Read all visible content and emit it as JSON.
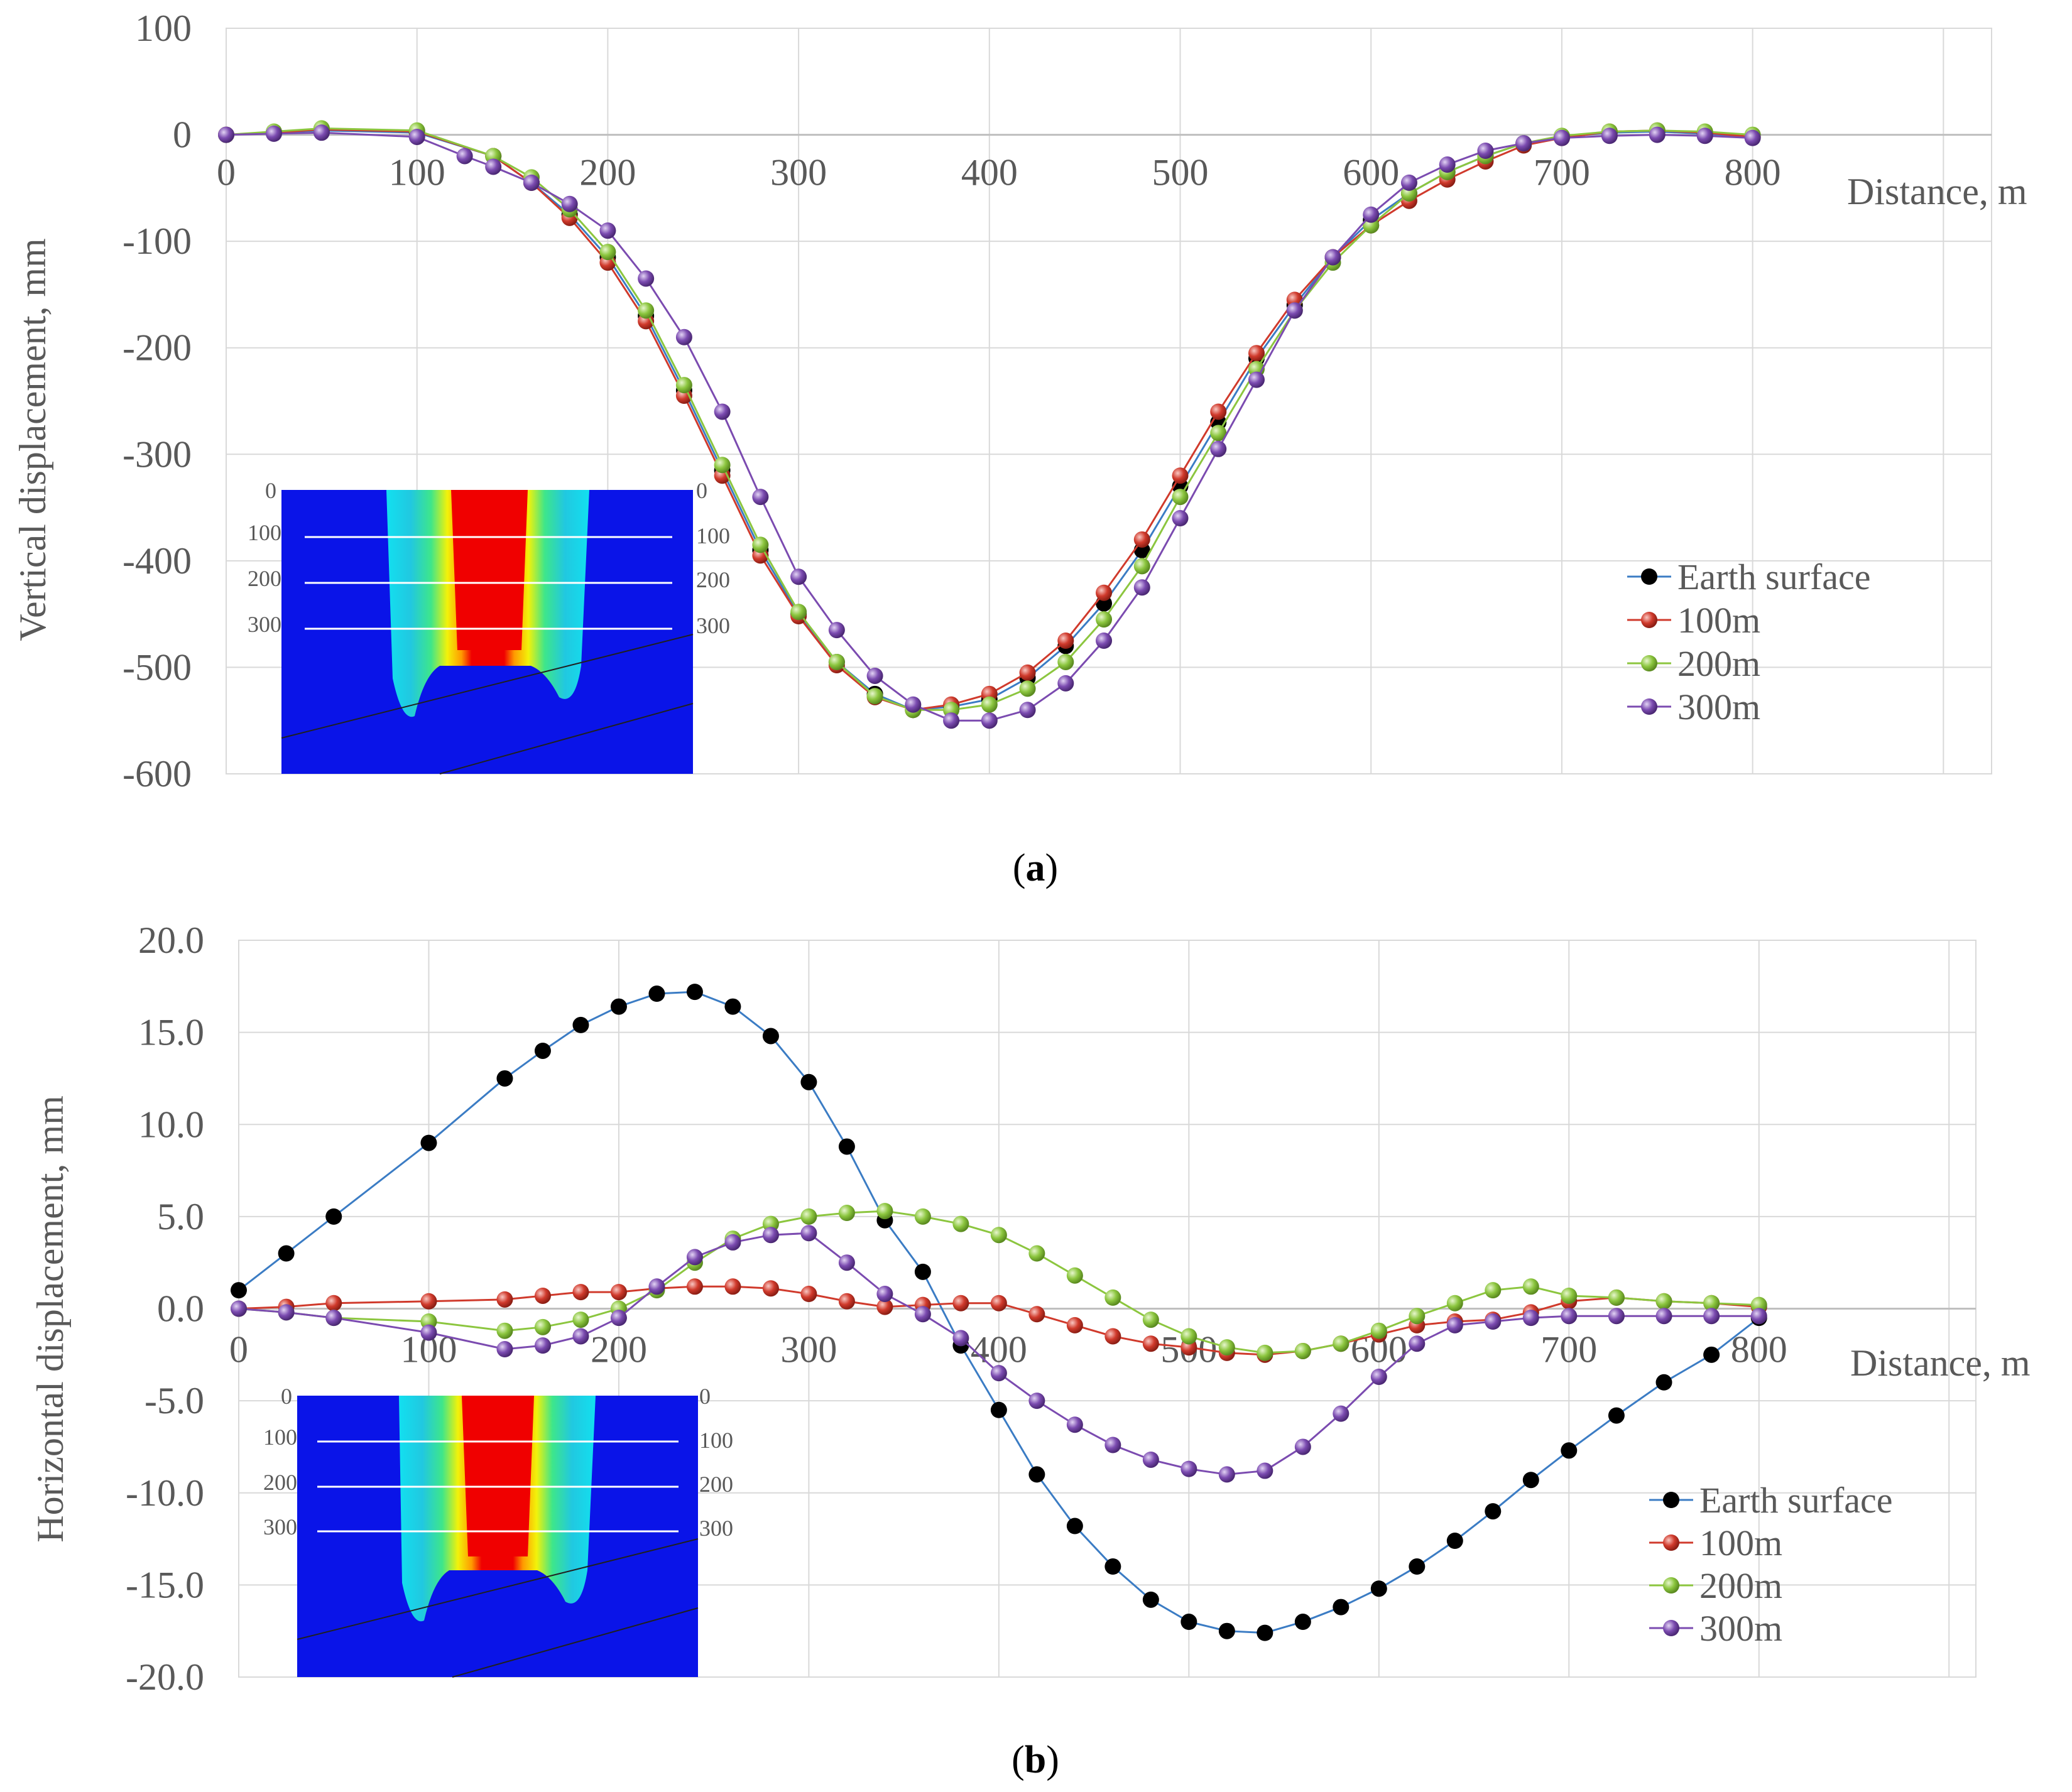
{
  "colors": {
    "Earth surface": "#3b7cc4",
    "100m": "#d03a2c",
    "200m": "#8cc63f",
    "300m": "#7b4bb0"
  },
  "chart_data": [
    {
      "panel": "a",
      "panel_label": "a",
      "type": "line",
      "ylabel": "Vertical displacement, mm",
      "xlabel": "Distance, m",
      "xlim": [
        0,
        900
      ],
      "ylim": [
        -600,
        100
      ],
      "x_ticks": [
        "0",
        "100",
        "200",
        "300",
        "400",
        "500",
        "600",
        "700",
        "800"
      ],
      "y_ticks": [
        "100",
        "0",
        "-100",
        "-200",
        "-300",
        "-400",
        "-500",
        "-600"
      ],
      "grid": true,
      "legend_position": "right",
      "legend": [
        "Earth surface",
        "100m",
        "200m",
        "300m"
      ],
      "inset_labels": [
        "0",
        "100",
        "200",
        "300"
      ],
      "series": [
        {
          "name": "Earth surface",
          "x": [
            0,
            25,
            50,
            100,
            140,
            160,
            180,
            200,
            220,
            240,
            260,
            280,
            300,
            320,
            340,
            360,
            380,
            400,
            420,
            440,
            460,
            480,
            500,
            520,
            540,
            560,
            580,
            600,
            620,
            640,
            660,
            680,
            700,
            725,
            750,
            775,
            800
          ],
          "values": [
            0,
            2,
            4,
            2,
            -20,
            -45,
            -75,
            -115,
            -170,
            -240,
            -315,
            -390,
            -450,
            -495,
            -525,
            -540,
            -537,
            -530,
            -510,
            -480,
            -440,
            -390,
            -330,
            -270,
            -210,
            -160,
            -115,
            -80,
            -55,
            -35,
            -20,
            -8,
            -2,
            2,
            3,
            1,
            -2
          ]
        },
        {
          "name": "100m",
          "x": [
            0,
            25,
            50,
            100,
            140,
            160,
            180,
            200,
            220,
            240,
            260,
            280,
            300,
            320,
            340,
            360,
            380,
            400,
            420,
            440,
            460,
            480,
            500,
            520,
            540,
            560,
            580,
            600,
            620,
            640,
            660,
            680,
            700,
            725,
            750,
            775,
            800
          ],
          "values": [
            0,
            2,
            5,
            3,
            -20,
            -45,
            -78,
            -120,
            -175,
            -245,
            -320,
            -395,
            -452,
            -498,
            -528,
            -540,
            -535,
            -525,
            -505,
            -475,
            -430,
            -380,
            -320,
            -260,
            -205,
            -155,
            -115,
            -85,
            -62,
            -42,
            -25,
            -10,
            -3,
            3,
            4,
            2,
            -2
          ]
        },
        {
          "name": "200m",
          "x": [
            0,
            25,
            50,
            100,
            140,
            160,
            180,
            200,
            220,
            240,
            260,
            280,
            300,
            320,
            340,
            360,
            380,
            400,
            420,
            440,
            460,
            480,
            500,
            520,
            540,
            560,
            580,
            600,
            620,
            640,
            660,
            680,
            700,
            725,
            750,
            775,
            800
          ],
          "values": [
            0,
            3,
            6,
            4,
            -20,
            -40,
            -70,
            -110,
            -165,
            -235,
            -310,
            -385,
            -448,
            -495,
            -527,
            -540,
            -540,
            -535,
            -520,
            -495,
            -455,
            -405,
            -340,
            -280,
            -220,
            -165,
            -120,
            -85,
            -55,
            -35,
            -20,
            -8,
            -1,
            3,
            4,
            3,
            0
          ]
        },
        {
          "name": "300m",
          "x": [
            0,
            25,
            50,
            100,
            125,
            140,
            160,
            180,
            200,
            220,
            240,
            260,
            280,
            300,
            320,
            340,
            360,
            380,
            400,
            420,
            440,
            460,
            480,
            500,
            520,
            540,
            560,
            580,
            600,
            620,
            640,
            660,
            680,
            700,
            725,
            750,
            775,
            800
          ],
          "values": [
            0,
            1,
            2,
            -2,
            -20,
            -30,
            -45,
            -65,
            -90,
            -135,
            -190,
            -260,
            -340,
            -415,
            -465,
            -508,
            -535,
            -550,
            -550,
            -540,
            -515,
            -475,
            -425,
            -360,
            -295,
            -230,
            -165,
            -115,
            -75,
            -45,
            -28,
            -15,
            -8,
            -3,
            -1,
            0,
            -1,
            -3
          ]
        }
      ]
    },
    {
      "panel": "b",
      "panel_label": "b",
      "type": "line",
      "ylabel": "Horizontal displacement, mm",
      "xlabel": "Distance, m",
      "xlim": [
        0,
        900
      ],
      "ylim": [
        -20,
        20
      ],
      "x_ticks": [
        "0",
        "100",
        "200",
        "300",
        "400",
        "500",
        "600",
        "700",
        "800"
      ],
      "y_ticks": [
        "20.0",
        "15.0",
        "10.0",
        "5.0",
        "0.0",
        "-5.0",
        "-10.0",
        "-15.0",
        "-20.0"
      ],
      "grid": true,
      "legend_position": "right",
      "legend": [
        "Earth surface",
        "100m",
        "200m",
        "300m"
      ],
      "inset_labels": [
        "0",
        "100",
        "200",
        "300"
      ],
      "series": [
        {
          "name": "Earth surface",
          "x": [
            0,
            25,
            50,
            100,
            140,
            160,
            180,
            200,
            220,
            240,
            260,
            280,
            300,
            320,
            340,
            360,
            380,
            400,
            420,
            440,
            460,
            480,
            500,
            520,
            540,
            560,
            580,
            600,
            620,
            640,
            660,
            680,
            700,
            725,
            750,
            775,
            800
          ],
          "values": [
            1.0,
            3.0,
            5.0,
            9.0,
            12.5,
            14.0,
            15.4,
            16.4,
            17.1,
            17.2,
            16.4,
            14.8,
            12.3,
            8.8,
            4.8,
            2.0,
            -2.0,
            -5.5,
            -9.0,
            -11.8,
            -14.0,
            -15.8,
            -17.0,
            -17.5,
            -17.6,
            -17.0,
            -16.2,
            -15.2,
            -14.0,
            -12.6,
            -11.0,
            -9.3,
            -7.7,
            -5.8,
            -4.0,
            -2.5,
            -0.5
          ]
        },
        {
          "name": "100m",
          "x": [
            0,
            25,
            50,
            100,
            140,
            160,
            180,
            200,
            220,
            240,
            260,
            280,
            300,
            320,
            340,
            360,
            380,
            400,
            420,
            440,
            460,
            480,
            500,
            520,
            540,
            560,
            580,
            600,
            620,
            640,
            660,
            680,
            700,
            725,
            750,
            775,
            800
          ],
          "values": [
            0,
            0.1,
            0.3,
            0.4,
            0.5,
            0.7,
            0.9,
            0.9,
            1.1,
            1.2,
            1.2,
            1.1,
            0.8,
            0.4,
            0.1,
            0.2,
            0.3,
            0.3,
            -0.3,
            -0.9,
            -1.5,
            -1.9,
            -2.1,
            -2.4,
            -2.5,
            -2.3,
            -1.9,
            -1.4,
            -0.9,
            -0.7,
            -0.6,
            -0.2,
            0.4,
            0.6,
            0.4,
            0.3,
            0.1
          ]
        },
        {
          "name": "200m",
          "x": [
            0,
            25,
            50,
            100,
            140,
            160,
            180,
            200,
            220,
            240,
            260,
            280,
            300,
            320,
            340,
            360,
            380,
            400,
            420,
            440,
            460,
            480,
            500,
            520,
            540,
            560,
            580,
            600,
            620,
            640,
            660,
            680,
            700,
            725,
            750,
            775,
            800
          ],
          "values": [
            0,
            -0.2,
            -0.5,
            -0.7,
            -1.2,
            -1.0,
            -0.6,
            0.0,
            1.0,
            2.5,
            3.8,
            4.6,
            5.0,
            5.2,
            5.3,
            5.0,
            4.6,
            4.0,
            3.0,
            1.8,
            0.6,
            -0.6,
            -1.5,
            -2.1,
            -2.4,
            -2.3,
            -1.9,
            -1.2,
            -0.4,
            0.3,
            1.0,
            1.2,
            0.7,
            0.6,
            0.4,
            0.3,
            0.2
          ]
        },
        {
          "name": "300m",
          "x": [
            0,
            25,
            50,
            100,
            140,
            160,
            180,
            200,
            220,
            240,
            260,
            280,
            300,
            320,
            340,
            360,
            380,
            400,
            420,
            440,
            460,
            480,
            500,
            520,
            540,
            560,
            580,
            600,
            620,
            640,
            660,
            680,
            700,
            725,
            750,
            775,
            800
          ],
          "values": [
            0,
            -0.2,
            -0.5,
            -1.3,
            -2.2,
            -2.0,
            -1.5,
            -0.5,
            1.2,
            2.8,
            3.6,
            4.0,
            4.1,
            2.5,
            0.8,
            -0.3,
            -1.6,
            -3.5,
            -5.0,
            -6.3,
            -7.4,
            -8.2,
            -8.7,
            -9.0,
            -8.8,
            -7.5,
            -5.7,
            -3.7,
            -1.9,
            -0.9,
            -0.7,
            -0.5,
            -0.4,
            -0.4,
            -0.4,
            -0.4,
            -0.4
          ]
        }
      ]
    }
  ]
}
